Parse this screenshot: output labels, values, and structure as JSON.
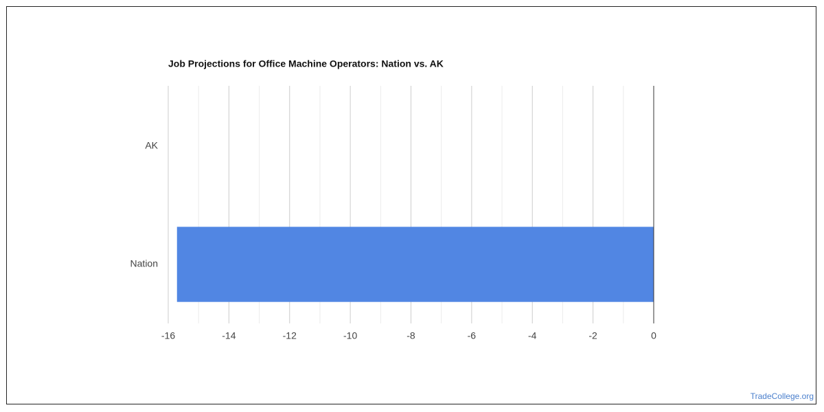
{
  "chart_data": {
    "type": "bar",
    "orientation": "horizontal",
    "title": "Job Projections for Office Machine Operators: Nation vs. AK",
    "categories": [
      "AK",
      "Nation"
    ],
    "values": [
      0,
      -15.7
    ],
    "color": "#5186e3",
    "xlim": [
      -16,
      0
    ],
    "xticks": [
      -16,
      -14,
      -12,
      -10,
      -8,
      -6,
      -4,
      -2,
      0
    ],
    "xminorticks": [
      -15,
      -13,
      -11,
      -9,
      -7,
      -5,
      -3,
      -1
    ],
    "grid": true
  },
  "footer": {
    "source": "TradeCollege.org"
  }
}
